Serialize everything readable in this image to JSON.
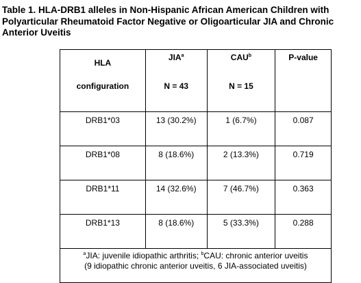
{
  "caption": "Table 1. HLA-DRB1 alleles in Non-Hispanic African American Children with Polyarticular Rheumatoid Factor Negative or Oligoarticular JIA and Chronic Anterior Uveitis",
  "header": {
    "hla_line1": "HLA",
    "hla_line2": "configuration",
    "jia_label": "JIA",
    "jia_sup": "a",
    "jia_n": "N = 43",
    "cau_label": "CAU",
    "cau_sup": "b",
    "cau_n": "N = 15",
    "pvalue": "P-value"
  },
  "rows": [
    {
      "allele": "DRB1*03",
      "jia": "13 (30.2%)",
      "cau": "1 (6.7%)",
      "p": "0.087"
    },
    {
      "allele": "DRB1*08",
      "jia": "8 (18.6%)",
      "cau": "2 (13.3%)",
      "p": "0.719"
    },
    {
      "allele": "DRB1*11",
      "jia": "14 (32.6%)",
      "cau": "7 (46.7%)",
      "p": "0.363"
    },
    {
      "allele": "DRB1*13",
      "jia": "8 (18.6%)",
      "cau": "5 (33.3%)",
      "p": "0.288"
    }
  ],
  "footnote": {
    "sup_a": "a",
    "text_a": "JIA: juvenile idiopathic arthritis; ",
    "sup_b": "b",
    "text_b": "CAU: chronic anterior uveitis",
    "line2": "(9 idiopathic chronic anterior uveitis, 6 JIA-associated uveitis)"
  }
}
